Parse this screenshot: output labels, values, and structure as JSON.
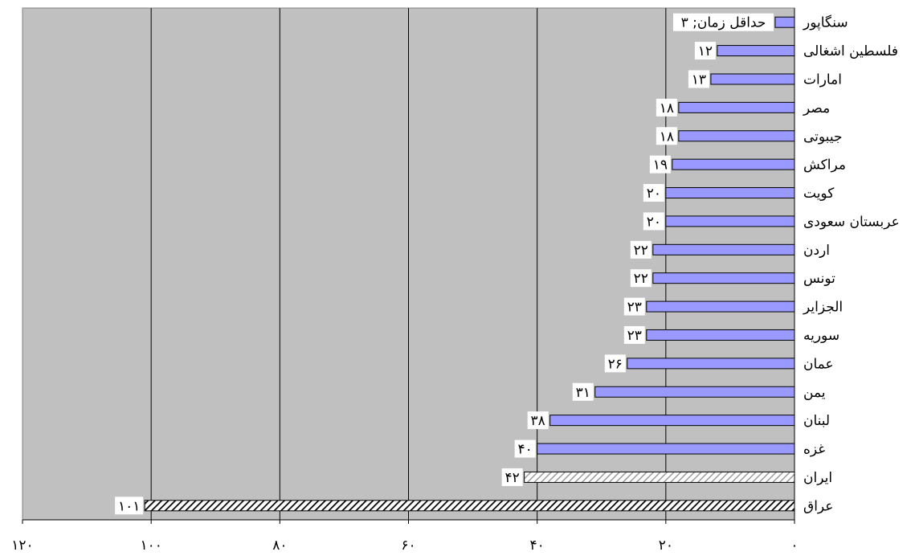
{
  "chart_data": {
    "type": "bar",
    "orientation": "horizontal",
    "x_direction": "right-to-left",
    "xlim": [
      0,
      120
    ],
    "x_ticks": [
      0,
      20,
      40,
      60,
      80,
      100,
      120
    ],
    "x_tick_labels": [
      "۰",
      "۲۰",
      "۴۰",
      "۶۰",
      "۸۰",
      "۱۰۰",
      "۱۲۰"
    ],
    "grid": true,
    "plot_background": "#c0c0c0",
    "bar_color": "#9999ff",
    "categories": [
      "سنگاپور",
      "فلسطین اشغالی",
      "امارات",
      "مصر",
      "جیبوتی",
      "مراکش",
      "کویت",
      "عربستان سعودی",
      "اردن",
      "تونس",
      "الجزایر",
      "سوریه",
      "عمان",
      "یمن",
      "لبنان",
      "غزه",
      "ایران",
      "عراق"
    ],
    "values": [
      3,
      12,
      13,
      18,
      18,
      19,
      20,
      20,
      22,
      22,
      23,
      23,
      26,
      31,
      38,
      40,
      42,
      101
    ],
    "value_labels": [
      "حداقل زمان; ۳",
      "۱۲",
      "۱۳",
      "۱۸",
      "۱۸",
      "۱۹",
      "۲۰",
      "۲۰",
      "۲۲",
      "۲۲",
      "۲۳",
      "۲۳",
      "۲۶",
      "۳۱",
      "۳۸",
      "۴۰",
      "۴۲",
      "۱۰۱"
    ],
    "bar_styles": [
      "solid",
      "solid",
      "solid",
      "solid",
      "solid",
      "solid",
      "solid",
      "solid",
      "solid",
      "solid",
      "solid",
      "solid",
      "solid",
      "solid",
      "solid",
      "solid",
      "light-hatch",
      "dark-hatch"
    ]
  }
}
